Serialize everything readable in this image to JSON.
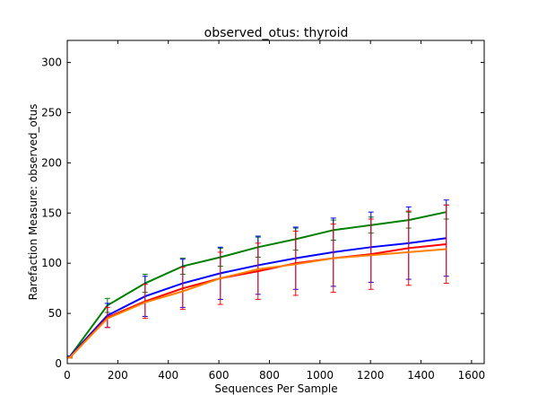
{
  "chart_data": {
    "type": "line",
    "title": "observed_otus: thyroid",
    "xlabel": "Sequences Per Sample",
    "ylabel": "Rarefaction Measure: observed_otus",
    "xlim": [
      0,
      1650
    ],
    "ylim": [
      0,
      322
    ],
    "xticks": [
      0,
      200,
      400,
      600,
      800,
      1000,
      1200,
      1400,
      1600
    ],
    "yticks": [
      0,
      50,
      100,
      150,
      200,
      250,
      300
    ],
    "grid": false,
    "legend": "none",
    "x": [
      10,
      159,
      308,
      457,
      606,
      755,
      904,
      1053,
      1202,
      1351,
      1500
    ],
    "series": [
      {
        "color": "#008000",
        "values": [
          7,
          58,
          80,
          97,
          106,
          116,
          124,
          133,
          138,
          143,
          151
        ],
        "err": [
          0.5,
          7,
          9,
          8,
          9,
          10,
          11,
          10,
          8,
          8,
          7
        ]
      },
      {
        "color": "#0000ff",
        "values": [
          7,
          48,
          67,
          80,
          90,
          98,
          105,
          111,
          116,
          120,
          125
        ],
        "err": [
          0.5,
          12,
          20,
          24,
          26,
          29,
          31,
          34,
          35,
          36,
          38
        ]
      },
      {
        "color": "#ff0000",
        "values": [
          6,
          46,
          62,
          75,
          85,
          92,
          100,
          105,
          109,
          115,
          119
        ],
        "err": [
          0.5,
          10,
          17,
          21,
          26,
          28,
          32,
          34,
          35,
          37,
          39
        ]
      },
      {
        "color": "#ff8000",
        "values": [
          6,
          45,
          61,
          72,
          85,
          94,
          99,
          105,
          108,
          111,
          114
        ],
        "err": [
          0.5,
          0,
          0,
          0,
          0,
          0,
          0,
          0,
          0,
          0,
          0
        ]
      }
    ]
  }
}
